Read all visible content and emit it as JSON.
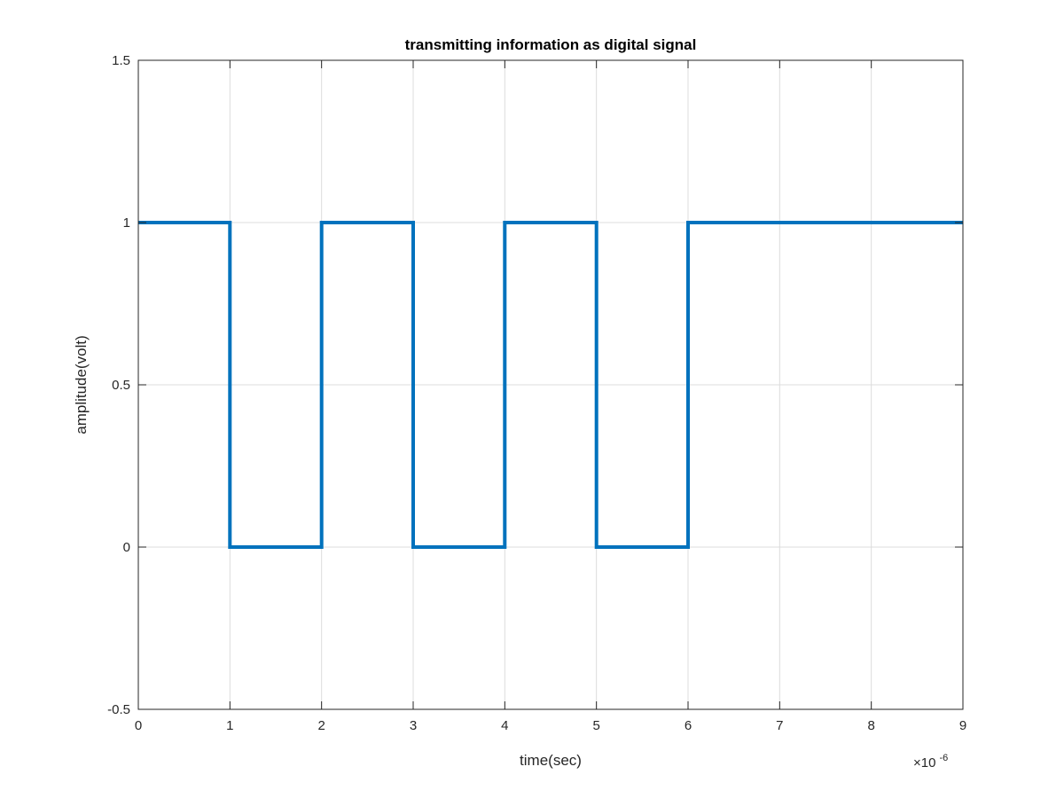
{
  "chart_data": {
    "type": "line",
    "title": "transmitting information as digital signal",
    "xlabel": "time(sec)",
    "ylabel": "amplitude(volt)",
    "x_exponent_label": "×10",
    "x_exponent": "-6",
    "x_scale": 1e-06,
    "xlim": [
      0,
      9
    ],
    "ylim": [
      -0.5,
      1.5
    ],
    "xticks": [
      0,
      1,
      2,
      3,
      4,
      5,
      6,
      7,
      8,
      9
    ],
    "xtick_labels": [
      "0",
      "1",
      "2",
      "3",
      "4",
      "5",
      "6",
      "7",
      "8",
      "9"
    ],
    "yticks": [
      -0.5,
      0,
      0.5,
      1,
      1.5
    ],
    "ytick_labels": [
      "-0.5",
      "0",
      "0.5",
      "1",
      "1.5"
    ],
    "grid": true,
    "series": [
      {
        "color": "#0072BD",
        "x": [
          0,
          1,
          1,
          2,
          2,
          3,
          3,
          4,
          4,
          5,
          5,
          6,
          6,
          9
        ],
        "y": [
          1,
          1,
          0,
          0,
          1,
          1,
          0,
          0,
          1,
          1,
          0,
          0,
          1,
          1
        ]
      }
    ]
  }
}
